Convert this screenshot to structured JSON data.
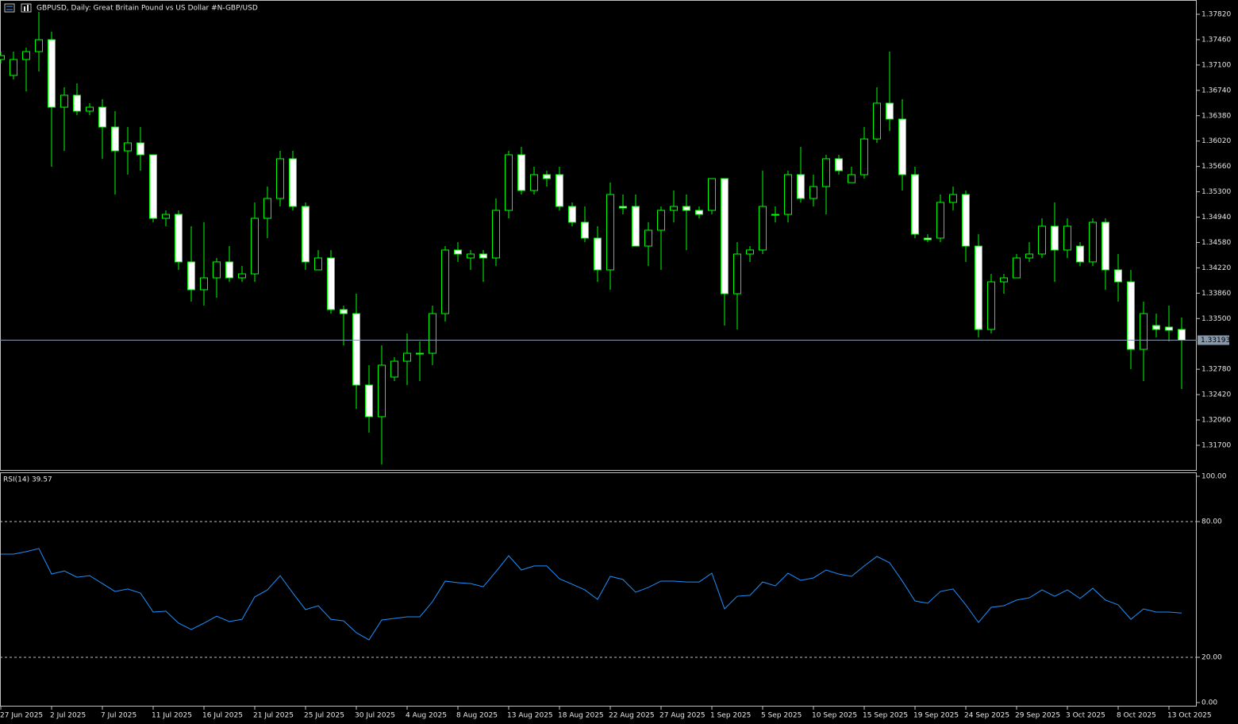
{
  "chart_data": [
    {
      "type": "candlestick",
      "title": "GBPUSD, Daily:  Great Britain Pound vs US Dollar #N-GBP/USD",
      "categories": [
        "27 Jun 2025",
        null,
        null,
        null,
        "2 Jul 2025",
        null,
        null,
        null,
        "7 Jul 2025",
        null,
        null,
        null,
        "11 Jul 2025",
        null,
        null,
        null,
        "16 Jul 2025",
        null,
        null,
        null,
        "21 Jul 2025",
        null,
        null,
        null,
        "25 Jul 2025",
        null,
        null,
        null,
        "30 Jul 2025",
        null,
        null,
        null,
        "4 Aug 2025",
        null,
        null,
        null,
        "8 Aug 2025",
        null,
        null,
        null,
        "13 Aug 2025",
        null,
        null,
        null,
        "18 Aug 2025",
        null,
        null,
        null,
        "22 Aug 2025",
        null,
        null,
        null,
        "27 Aug 2025",
        null,
        null,
        null,
        "1 Sep 2025",
        null,
        null,
        null,
        "5 Sep 2025",
        null,
        null,
        null,
        "10 Sep 2025",
        null,
        null,
        null,
        "15 Sep 2025",
        null,
        null,
        null,
        "19 Sep 2025",
        null,
        null,
        null,
        "24 Sep 2025",
        null,
        null,
        null,
        "29 Sep 2025",
        null,
        null,
        null,
        "3 Oct 2025",
        null,
        null,
        null,
        "8 Oct 2025",
        null,
        null,
        null,
        "13 Oct 2025",
        null
      ],
      "open": [
        1.37178,
        1.36952,
        1.37178,
        1.3729,
        1.37459,
        1.36501,
        1.36671,
        1.36445,
        1.36501,
        1.36219,
        1.35881,
        1.35994,
        1.35825,
        1.34923,
        1.34979,
        1.34304,
        1.33909,
        1.34078,
        1.34304,
        1.34078,
        1.34134,
        1.34923,
        1.35205,
        1.35769,
        1.35092,
        1.34191,
        1.3436,
        1.33627,
        1.3357,
        1.32556,
        1.32106,
        1.32669,
        1.32894,
        1.33007,
        1.33007,
        1.3357,
        1.34473,
        1.3436,
        1.34416,
        1.3436,
        1.35036,
        1.35825,
        1.35318,
        1.35543,
        1.35543,
        1.35092,
        1.34867,
        1.34642,
        1.34191,
        1.35092,
        1.35092,
        1.34529,
        1.34754,
        1.35036,
        1.35092,
        1.35036,
        1.35036,
        1.35487,
        1.33852,
        1.34416,
        1.34473,
        1.34979,
        1.34979,
        1.35543,
        1.35205,
        1.35374,
        1.35769,
        1.3543,
        1.35543,
        1.3605,
        1.36558,
        1.36332,
        1.35543,
        1.34642,
        1.34642,
        1.35149,
        1.35261,
        1.34529,
        1.33345,
        1.34021,
        1.34078,
        1.3436,
        1.34416,
        1.34811,
        1.34473,
        1.34529,
        1.34304,
        1.34867,
        1.34191,
        1.34021,
        1.33063,
        1.33401,
        1.33379,
        1.33345
      ],
      "high": [
        1.3729,
        1.3729,
        1.37347,
        1.37854,
        1.37572,
        1.36783,
        1.3684,
        1.36558,
        1.36614,
        1.36445,
        1.36219,
        1.36219,
        1.35825,
        1.35036,
        1.35036,
        1.34811,
        1.34867,
        1.3436,
        1.34529,
        1.34247,
        1.35149,
        1.35374,
        1.35881,
        1.35881,
        1.35149,
        1.34473,
        1.34473,
        1.33683,
        1.33852,
        1.32838,
        1.3312,
        1.32951,
        1.33289,
        1.33176,
        1.33683,
        1.34529,
        1.34585,
        1.34473,
        1.34473,
        1.35205,
        1.35881,
        1.35938,
        1.35656,
        1.35599,
        1.35656,
        1.35149,
        1.35092,
        1.34811,
        1.3543,
        1.35261,
        1.35261,
        1.34867,
        1.35092,
        1.35318,
        1.35261,
        1.35092,
        1.35487,
        1.35487,
        1.34585,
        1.34529,
        1.35599,
        1.35092,
        1.35599,
        1.35938,
        1.35543,
        1.35825,
        1.35825,
        1.35656,
        1.36219,
        1.36783,
        1.3729,
        1.36614,
        1.35656,
        1.34698,
        1.35261,
        1.35374,
        1.35318,
        1.34698,
        1.34134,
        1.34134,
        1.34416,
        1.34585,
        1.34923,
        1.35149,
        1.34923,
        1.34585,
        1.34923,
        1.34923,
        1.34416,
        1.34191,
        1.3374,
        1.3357,
        1.33683,
        1.33514
      ],
      "low": [
        1.37121,
        1.36896,
        1.36727,
        1.37009,
        1.35656,
        1.35881,
        1.36389,
        1.36389,
        1.35769,
        1.35261,
        1.35543,
        1.35599,
        1.34867,
        1.34811,
        1.34191,
        1.3374,
        1.33683,
        1.33796,
        1.34021,
        1.34021,
        1.34021,
        1.34642,
        1.35092,
        1.35036,
        1.34191,
        1.34191,
        1.3357,
        1.3312,
        1.32218,
        1.3188,
        1.31429,
        1.32612,
        1.32556,
        1.32612,
        1.32838,
        1.33458,
        1.34304,
        1.34191,
        1.34021,
        1.34247,
        1.34923,
        1.35261,
        1.35261,
        1.35374,
        1.35036,
        1.34811,
        1.34585,
        1.34021,
        1.33909,
        1.34979,
        1.34529,
        1.34247,
        1.34191,
        1.34867,
        1.34473,
        1.34923,
        1.34979,
        1.33401,
        1.33345,
        1.34304,
        1.34416,
        1.34867,
        1.34867,
        1.35149,
        1.35092,
        1.34979,
        1.35543,
        1.3543,
        1.35487,
        1.35994,
        1.36163,
        1.35318,
        1.34642,
        1.34585,
        1.34585,
        1.35036,
        1.34304,
        1.33232,
        1.33289,
        1.33852,
        1.34078,
        1.34304,
        1.3436,
        1.34021,
        1.3436,
        1.34247,
        1.34247,
        1.33909,
        1.3374,
        1.32781,
        1.32612,
        1.33232,
        1.33176,
        1.325
      ],
      "close": [
        1.37234,
        1.37178,
        1.3729,
        1.37459,
        1.36501,
        1.36671,
        1.36445,
        1.36501,
        1.36219,
        1.35881,
        1.35994,
        1.35825,
        1.34923,
        1.34979,
        1.34304,
        1.33909,
        1.34078,
        1.34304,
        1.34078,
        1.34134,
        1.34923,
        1.35205,
        1.35769,
        1.35092,
        1.34304,
        1.3436,
        1.33627,
        1.3357,
        1.32556,
        1.32106,
        1.32838,
        1.32894,
        1.33007,
        1.33007,
        1.3357,
        1.34473,
        1.34416,
        1.34416,
        1.3436,
        1.35036,
        1.35825,
        1.35318,
        1.35543,
        1.35487,
        1.35092,
        1.34867,
        1.34642,
        1.34191,
        1.35261,
        1.3507,
        1.34529,
        1.34754,
        1.35036,
        1.35092,
        1.35036,
        1.34979,
        1.35487,
        1.33852,
        1.34416,
        1.34473,
        1.35092,
        1.34979,
        1.35543,
        1.35205,
        1.35374,
        1.35769,
        1.35599,
        1.35543,
        1.3605,
        1.36558,
        1.36332,
        1.35543,
        1.34698,
        1.34619,
        1.35149,
        1.35261,
        1.34529,
        1.33345,
        1.34021,
        1.34078,
        1.3436,
        1.34416,
        1.34811,
        1.34473,
        1.34811,
        1.34304,
        1.34867,
        1.34191,
        1.34021,
        1.33063,
        1.3357,
        1.33345,
        1.33334,
        1.33193
      ],
      "bull_color": "#000000",
      "bear_color": "#ffffff",
      "wick_color": "#00ff00",
      "ylim": [
        1.3135,
        1.38023
      ],
      "yticks": [
        {
          "value": 1.3782,
          "label": "1.37820"
        },
        {
          "value": 1.3746,
          "label": "1.37460"
        },
        {
          "value": 1.371,
          "label": "1.37100"
        },
        {
          "value": 1.3674,
          "label": "1.36740"
        },
        {
          "value": 1.3638,
          "label": "1.36380"
        },
        {
          "value": 1.3602,
          "label": "1.36020"
        },
        {
          "value": 1.3566,
          "label": "1.35660"
        },
        {
          "value": 1.353,
          "label": "1.35300"
        },
        {
          "value": 1.3494,
          "label": "1.34940"
        },
        {
          "value": 1.3458,
          "label": "1.34580"
        },
        {
          "value": 1.3422,
          "label": "1.34220"
        },
        {
          "value": 1.3386,
          "label": "1.33860"
        },
        {
          "value": 1.335,
          "label": "1.33500"
        },
        {
          "value": 1.3278,
          "label": "1.32780"
        },
        {
          "value": 1.3242,
          "label": "1.32420"
        },
        {
          "value": 1.3206,
          "label": "1.32060"
        },
        {
          "value": 1.317,
          "label": "1.31700"
        }
      ],
      "bid": 1.33193
    },
    {
      "type": "line",
      "title": "RSI(14) 39.57",
      "values": [
        65.6,
        65.6,
        66.7,
        68.1,
        56.8,
        58.2,
        55.4,
        56.1,
        52.6,
        49.1,
        50.2,
        48.4,
        40.0,
        40.4,
        35.1,
        32.3,
        35.1,
        38.2,
        35.8,
        36.8,
        46.7,
        49.8,
        56.1,
        48.4,
        41.1,
        42.8,
        36.8,
        36.1,
        30.9,
        27.7,
        36.5,
        37.2,
        37.9,
        37.9,
        44.6,
        53.7,
        53.0,
        52.6,
        51.2,
        57.9,
        64.9,
        58.6,
        60.4,
        60.4,
        54.7,
        52.3,
        49.8,
        45.6,
        55.8,
        54.4,
        48.8,
        50.9,
        53.7,
        53.7,
        53.3,
        53.3,
        57.2,
        41.4,
        47.0,
        47.4,
        53.3,
        51.6,
        57.2,
        54.0,
        55.1,
        58.6,
        56.8,
        55.8,
        60.4,
        64.6,
        61.8,
        53.7,
        44.9,
        43.9,
        49.1,
        50.2,
        43.2,
        35.4,
        42.1,
        42.8,
        45.3,
        46.3,
        49.8,
        47.0,
        49.8,
        46.0,
        50.5,
        45.3,
        43.2,
        36.8,
        41.4,
        40.0,
        40.0,
        39.57
      ],
      "color": "#1e90ff",
      "ylim": [
        0,
        100
      ],
      "yticks": [
        {
          "value": 100,
          "label": "100.00"
        },
        {
          "value": 80,
          "label": "80.00"
        },
        {
          "value": 20,
          "label": "20.00"
        },
        {
          "value": 0,
          "label": "0.00"
        }
      ],
      "levels": [
        80,
        20
      ]
    }
  ]
}
